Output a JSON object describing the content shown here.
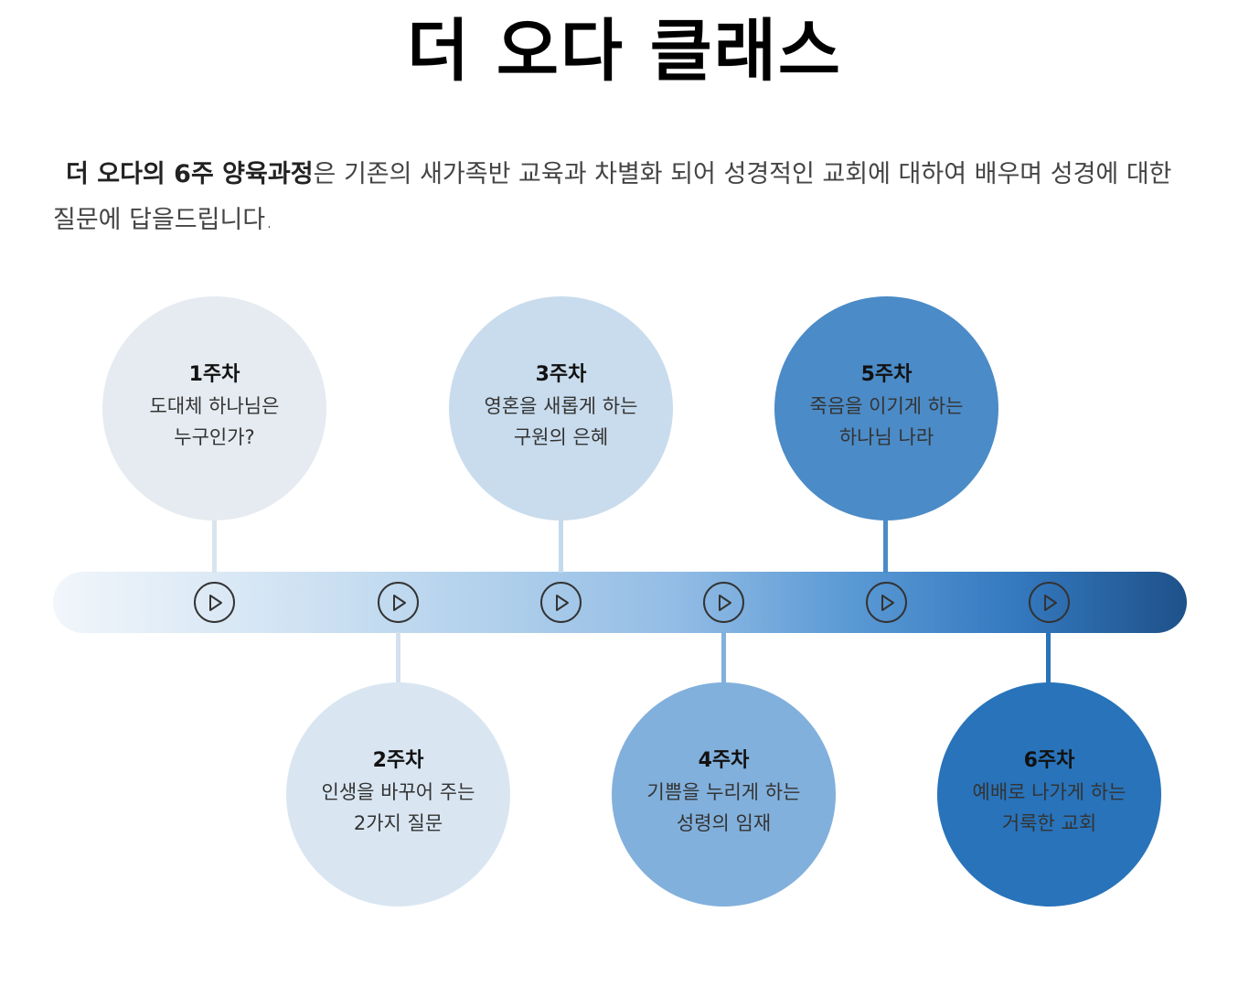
{
  "page": {
    "title": "더 오다 클래스"
  },
  "intro": {
    "highlight": "더 오다의 6주 양육과정",
    "text": "은 기존의 새가족반 교육과 차별화 되어 성경적인 교회에 대하여 배우며 성경에 대한 질문에 답을드립니다."
  },
  "weeks": [
    {
      "label": "1주차",
      "line1": "도대체 하나님은",
      "line2": "누구인가?",
      "color": "#e6ebf1"
    },
    {
      "label": "2주차",
      "line1": "인생을 바꾸어 주는",
      "line2": "2가지 질문",
      "color": "#d9e6f2"
    },
    {
      "label": "3주차",
      "line1": "영혼을 새롭게 하는",
      "line2": "구원의 은혜",
      "color": "#c9dced"
    },
    {
      "label": "4주차",
      "line1": "기쁨을 누리게 하는",
      "line2": "성령의 임재",
      "color": "#82b0dc"
    },
    {
      "label": "5주차",
      "line1": "죽음을 이기게 하는",
      "line2": "하나님 나라",
      "color": "#4b8bc7"
    },
    {
      "label": "6주차",
      "line1": "예배로 나가게 하는",
      "line2": "거룩한 교회",
      "color": "#2873ba"
    }
  ],
  "icons": {
    "play": "play-icon"
  }
}
